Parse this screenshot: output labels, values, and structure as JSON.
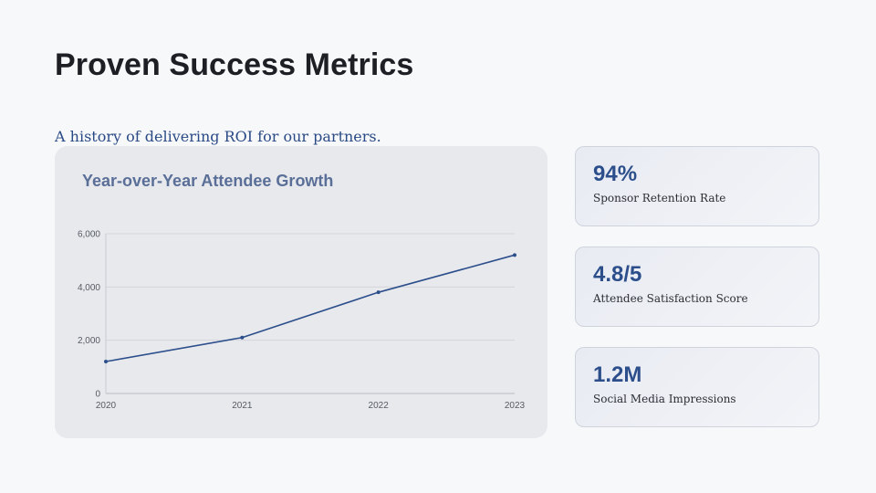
{
  "header": {
    "title": "Proven Success Metrics",
    "subtitle": "A history of delivering ROI for our partners."
  },
  "colors": {
    "accent": "#2c4f8c",
    "chart_line": "#2c4f8c",
    "chart_title": "#5a6f98"
  },
  "chart_data": {
    "type": "line",
    "title": "Year-over-Year Attendee Growth",
    "xlabel": "",
    "ylabel": "",
    "x": [
      "2020",
      "2021",
      "2022",
      "2023"
    ],
    "series": [
      {
        "name": "Attendees",
        "values": [
          1200,
          2100,
          3800,
          5200
        ]
      }
    ],
    "ylim": [
      0,
      6000
    ],
    "yticks": [
      0,
      2000,
      4000,
      6000
    ],
    "ytick_labels": [
      "0",
      "2,000",
      "4,000",
      "6,000"
    ],
    "grid": true,
    "legend": "none"
  },
  "stats": [
    {
      "value": "94%",
      "label": "Sponsor Retention Rate"
    },
    {
      "value": "4.8/5",
      "label": "Attendee Satisfaction Score"
    },
    {
      "value": "1.2M",
      "label": "Social Media Impressions"
    }
  ]
}
